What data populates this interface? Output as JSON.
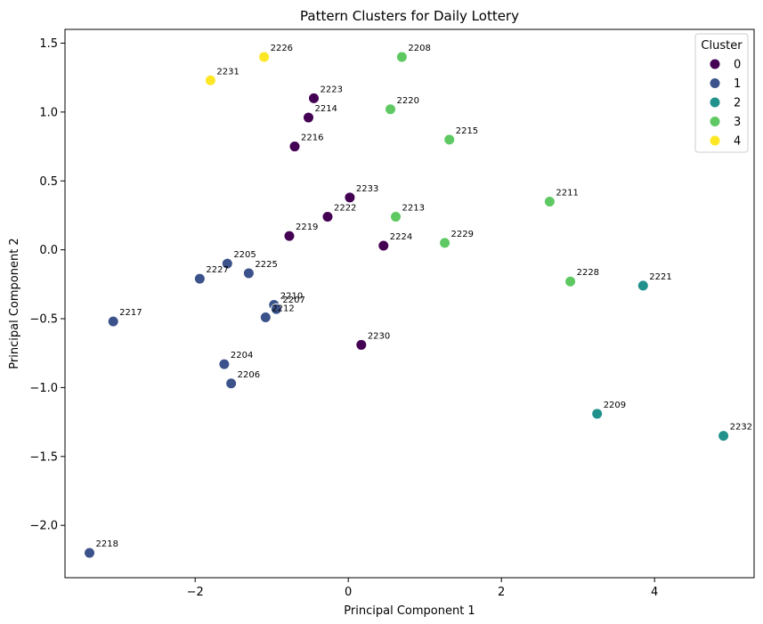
{
  "chart_data": {
    "type": "scatter",
    "title": "Pattern Clusters for Daily Lottery",
    "xlabel": "Principal Component 1",
    "ylabel": "Principal Component 2",
    "xlim": [
      -3.7,
      5.3
    ],
    "ylim": [
      -2.38,
      1.6
    ],
    "xticks": [
      -2,
      0,
      2,
      4
    ],
    "yticks": [
      -2.0,
      -1.5,
      -1.0,
      -0.5,
      0.0,
      0.5,
      1.0,
      1.5
    ],
    "xtick_labels": [
      "−2",
      "0",
      "2",
      "4"
    ],
    "ytick_labels": [
      "−2.0",
      "−1.5",
      "−1.0",
      "−0.5",
      "0.0",
      "0.5",
      "1.0",
      "1.5"
    ],
    "grid": false,
    "legend": {
      "title": "Cluster",
      "placement": "top-right",
      "entries": [
        {
          "label": "0",
          "color": "#440154"
        },
        {
          "label": "1",
          "color": "#3b528b"
        },
        {
          "label": "2",
          "color": "#21918c"
        },
        {
          "label": "3",
          "color": "#5ec962"
        },
        {
          "label": "4",
          "color": "#fde725"
        }
      ]
    },
    "points": [
      {
        "label": "2226",
        "x": -1.1,
        "y": 1.4,
        "cluster": 4
      },
      {
        "label": "2231",
        "x": -1.8,
        "y": 1.23,
        "cluster": 4
      },
      {
        "label": "2208",
        "x": 0.7,
        "y": 1.4,
        "cluster": 3
      },
      {
        "label": "2220",
        "x": 0.55,
        "y": 1.02,
        "cluster": 3
      },
      {
        "label": "2215",
        "x": 1.32,
        "y": 0.8,
        "cluster": 3
      },
      {
        "label": "2211",
        "x": 2.63,
        "y": 0.35,
        "cluster": 3
      },
      {
        "label": "2213",
        "x": 0.62,
        "y": 0.24,
        "cluster": 3
      },
      {
        "label": "2229",
        "x": 1.26,
        "y": 0.05,
        "cluster": 3
      },
      {
        "label": "2228",
        "x": 2.9,
        "y": -0.23,
        "cluster": 3
      },
      {
        "label": "2223",
        "x": -0.45,
        "y": 1.1,
        "cluster": 0
      },
      {
        "label": "2214",
        "x": -0.52,
        "y": 0.96,
        "cluster": 0
      },
      {
        "label": "2216",
        "x": -0.7,
        "y": 0.75,
        "cluster": 0
      },
      {
        "label": "2233",
        "x": 0.02,
        "y": 0.38,
        "cluster": 0
      },
      {
        "label": "2222",
        "x": -0.27,
        "y": 0.24,
        "cluster": 0
      },
      {
        "label": "2219",
        "x": -0.77,
        "y": 0.1,
        "cluster": 0
      },
      {
        "label": "2224",
        "x": 0.46,
        "y": 0.03,
        "cluster": 0
      },
      {
        "label": "2230",
        "x": 0.17,
        "y": -0.69,
        "cluster": 0
      },
      {
        "label": "2205",
        "x": -1.58,
        "y": -0.1,
        "cluster": 1
      },
      {
        "label": "2227",
        "x": -1.94,
        "y": -0.21,
        "cluster": 1
      },
      {
        "label": "2225",
        "x": -1.3,
        "y": -0.17,
        "cluster": 1
      },
      {
        "label": "2210",
        "x": -0.97,
        "y": -0.4,
        "cluster": 1
      },
      {
        "label": "2207",
        "x": -0.94,
        "y": -0.43,
        "cluster": 1
      },
      {
        "label": "2212",
        "x": -1.08,
        "y": -0.49,
        "cluster": 1
      },
      {
        "label": "2217",
        "x": -3.07,
        "y": -0.52,
        "cluster": 1
      },
      {
        "label": "2204",
        "x": -1.62,
        "y": -0.83,
        "cluster": 1
      },
      {
        "label": "2206",
        "x": -1.53,
        "y": -0.97,
        "cluster": 1
      },
      {
        "label": "2218",
        "x": -3.38,
        "y": -2.2,
        "cluster": 1
      },
      {
        "label": "2221",
        "x": 3.85,
        "y": -0.26,
        "cluster": 2
      },
      {
        "label": "2209",
        "x": 3.25,
        "y": -1.19,
        "cluster": 2
      },
      {
        "label": "2232",
        "x": 4.9,
        "y": -1.35,
        "cluster": 2
      }
    ]
  }
}
